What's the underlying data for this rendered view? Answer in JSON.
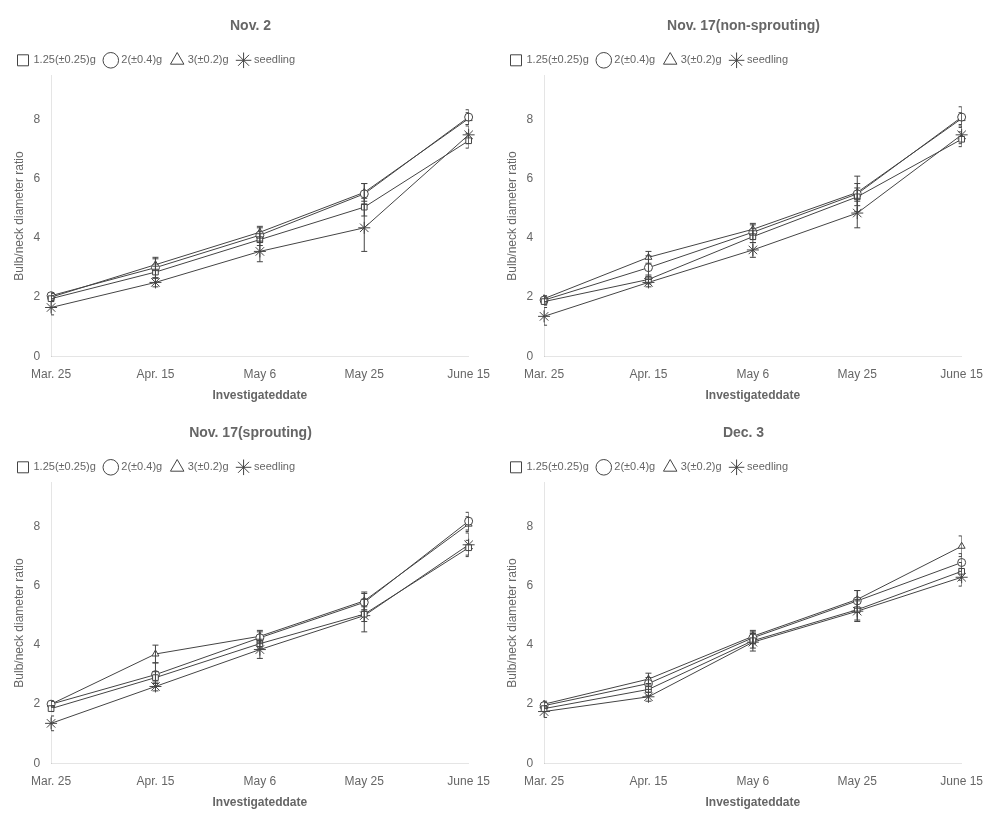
{
  "chart_data": [
    {
      "type": "line",
      "title": "Nov. 2",
      "categories": [
        "Mar. 25",
        "Apr. 15",
        "May 6",
        "May 25",
        "June 15"
      ],
      "xlabel": "Investigateddate",
      "ylabel": "Bulb/neck diameter ratio",
      "ylim": [
        0,
        9.5
      ],
      "yticks": [
        0,
        2,
        4,
        6,
        8
      ],
      "grid": false,
      "legend": "upper left",
      "series": [
        {
          "name": "1.25(±0.25)g",
          "color": "#444444",
          "marker": "square",
          "values": [
            1.95,
            2.85,
            3.95,
            5.05,
            7.3
          ],
          "errors": [
            0.1,
            0.2,
            0.2,
            0.3,
            0.25
          ]
        },
        {
          "name": "2(±0.4)g",
          "color": "#444444",
          "marker": "circle",
          "values": [
            2.05,
            3.0,
            4.1,
            5.5,
            8.1
          ],
          "errors": [
            0.1,
            0.35,
            0.25,
            0.35,
            0.25
          ]
        },
        {
          "name": "3(±0.2)g",
          "color": "#444444",
          "marker": "triangle",
          "values": [
            2.0,
            3.1,
            4.2,
            5.55,
            8.05
          ],
          "errors": [
            0.12,
            0.2,
            0.2,
            0.3,
            0.2
          ]
        },
        {
          "name": "seedling",
          "color": "#444444",
          "marker": "star",
          "values": [
            1.65,
            2.5,
            3.55,
            4.35,
            7.5
          ],
          "errors": [
            0.25,
            0.15,
            0.35,
            0.8,
            0.3
          ]
        }
      ]
    },
    {
      "type": "line",
      "title": "Nov. 17(non-sprouting)",
      "categories": [
        "Mar. 25",
        "Apr. 15",
        "May 6",
        "May 25",
        "June 15"
      ],
      "xlabel": "Investigateddate",
      "ylabel": "Bulb/neck diameter ratio",
      "ylim": [
        0,
        9.5
      ],
      "yticks": [
        0,
        2,
        4,
        6,
        8
      ],
      "grid": false,
      "legend": "upper left",
      "series": [
        {
          "name": "1.25(±0.25)g",
          "color": "#444444",
          "marker": "square",
          "values": [
            1.85,
            2.6,
            4.05,
            5.4,
            7.35
          ],
          "errors": [
            0.12,
            0.15,
            0.2,
            0.3,
            0.25
          ]
        },
        {
          "name": "2(±0.4)g",
          "color": "#444444",
          "marker": "circle",
          "values": [
            1.9,
            3.0,
            4.2,
            5.5,
            8.1
          ],
          "errors": [
            0.1,
            0.4,
            0.25,
            0.6,
            0.35
          ]
        },
        {
          "name": "3(±0.2)g",
          "color": "#444444",
          "marker": "triangle",
          "values": [
            1.95,
            3.35,
            4.3,
            5.55,
            8.05
          ],
          "errors": [
            0.1,
            0.2,
            0.2,
            0.3,
            0.2
          ]
        },
        {
          "name": "seedling",
          "color": "#444444",
          "marker": "star",
          "values": [
            1.35,
            2.5,
            3.6,
            4.85,
            7.5
          ],
          "errors": [
            0.3,
            0.15,
            0.25,
            0.5,
            0.3
          ]
        }
      ]
    },
    {
      "type": "line",
      "title": "Nov. 17(sprouting)",
      "categories": [
        "Mar. 25",
        "Apr. 15",
        "May 6",
        "May 25",
        "June 15"
      ],
      "xlabel": "Investigateddate",
      "ylabel": "Bulb/neck diameter ratio",
      "ylim": [
        0,
        9.5
      ],
      "yticks": [
        0,
        2,
        4,
        6,
        8
      ],
      "grid": false,
      "legend": "upper left",
      "series": [
        {
          "name": "1.25(±0.25)g",
          "color": "#444444",
          "marker": "square",
          "values": [
            1.85,
            2.9,
            4.05,
            5.05,
            7.3
          ],
          "errors": [
            0.1,
            0.2,
            0.15,
            0.25,
            0.25
          ]
        },
        {
          "name": "2(±0.4)g",
          "color": "#444444",
          "marker": "circle",
          "values": [
            2.0,
            3.0,
            4.25,
            5.45,
            8.2
          ],
          "errors": [
            0.1,
            0.4,
            0.2,
            0.3,
            0.3
          ]
        },
        {
          "name": "3(±0.2)g",
          "color": "#444444",
          "marker": "triangle",
          "values": [
            2.0,
            3.7,
            4.3,
            5.5,
            8.1
          ],
          "errors": [
            0.1,
            0.3,
            0.2,
            0.3,
            0.25
          ]
        },
        {
          "name": "seedling",
          "color": "#444444",
          "marker": "star",
          "values": [
            1.35,
            2.6,
            3.85,
            5.0,
            7.4
          ],
          "errors": [
            0.25,
            0.15,
            0.3,
            0.55,
            0.4
          ]
        }
      ]
    },
    {
      "type": "line",
      "title": "Dec. 3",
      "categories": [
        "Mar. 25",
        "Apr. 15",
        "May 6",
        "May 25",
        "June 15"
      ],
      "xlabel": "Investigateddate",
      "ylabel": "Bulb/neck diameter ratio",
      "ylim": [
        0,
        9.5
      ],
      "yticks": [
        0,
        2,
        4,
        6,
        8
      ],
      "grid": false,
      "legend": "upper left",
      "series": [
        {
          "name": "1.25(±0.25)g",
          "color": "#444444",
          "marker": "square",
          "values": [
            1.85,
            2.5,
            4.15,
            5.2,
            6.5
          ],
          "errors": [
            0.1,
            0.2,
            0.25,
            0.35,
            0.3
          ]
        },
        {
          "name": "2(±0.4)g",
          "color": "#444444",
          "marker": "circle",
          "values": [
            1.95,
            2.7,
            4.25,
            5.5,
            6.8
          ],
          "errors": [
            0.1,
            0.2,
            0.2,
            0.35,
            0.3
          ]
        },
        {
          "name": "3(±0.2)g",
          "color": "#444444",
          "marker": "triangle",
          "values": [
            2.0,
            2.85,
            4.3,
            5.55,
            7.35
          ],
          "errors": [
            0.1,
            0.2,
            0.2,
            0.3,
            0.35
          ]
        },
        {
          "name": "seedling",
          "color": "#444444",
          "marker": "star",
          "values": [
            1.75,
            2.25,
            4.1,
            5.15,
            6.3
          ],
          "errors": [
            0.2,
            0.15,
            0.3,
            0.35,
            0.3
          ]
        }
      ]
    }
  ]
}
